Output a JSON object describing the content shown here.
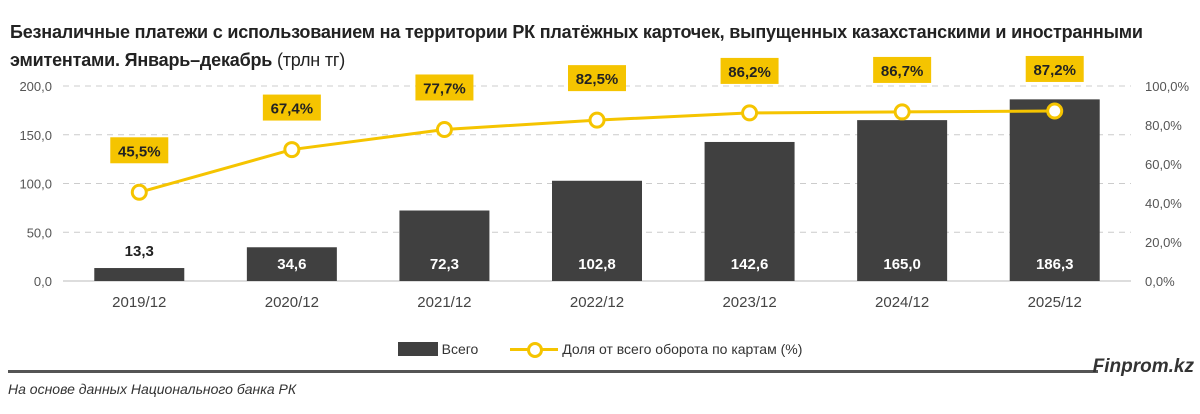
{
  "title": "Безналичные платежи с использованием на территории РК платёжных карточек, выпущенных казахстанскими и иностранными эмитентами. Январь–декабрь",
  "title_unit": "(трлн тг)",
  "chart_data": {
    "type": "bar+line",
    "categories": [
      "2019/12",
      "2020/12",
      "2021/12",
      "2022/12",
      "2023/12",
      "2024/12",
      "2025/12"
    ],
    "series": [
      {
        "name": "Всего",
        "type": "bar",
        "axis": "left",
        "values": [
          13.3,
          34.6,
          72.3,
          102.8,
          142.6,
          165.0,
          186.3
        ],
        "labels": [
          "13,3",
          "34,6",
          "72,3",
          "102,8",
          "142,6",
          "165,0",
          "186,3"
        ],
        "color": "#404040"
      },
      {
        "name": "Доля от всего оборота по картам (%)",
        "type": "line",
        "axis": "right",
        "values": [
          45.5,
          67.4,
          77.7,
          82.5,
          86.2,
          86.7,
          87.2
        ],
        "labels": [
          "45,5%",
          "67,4%",
          "77,7%",
          "82,5%",
          "86,2%",
          "86,7%",
          "87,2%"
        ],
        "color": "#f5c400"
      }
    ],
    "left_axis": {
      "range": [
        0,
        200
      ],
      "ticks": [
        "0,0",
        "50,0",
        "100,0",
        "150,0",
        "200,0"
      ]
    },
    "right_axis": {
      "range": [
        0,
        100
      ],
      "ticks": [
        "0,0%",
        "20,0%",
        "40,0%",
        "60,0%",
        "80,0%",
        "100,0%"
      ]
    },
    "grid": true,
    "legend": "bottom"
  },
  "legend": {
    "bar": "Всего",
    "line": "Доля от всего оборота по картам (%)"
  },
  "brand": "Finprom.kz",
  "source": "На основе данных Национального банка РК"
}
